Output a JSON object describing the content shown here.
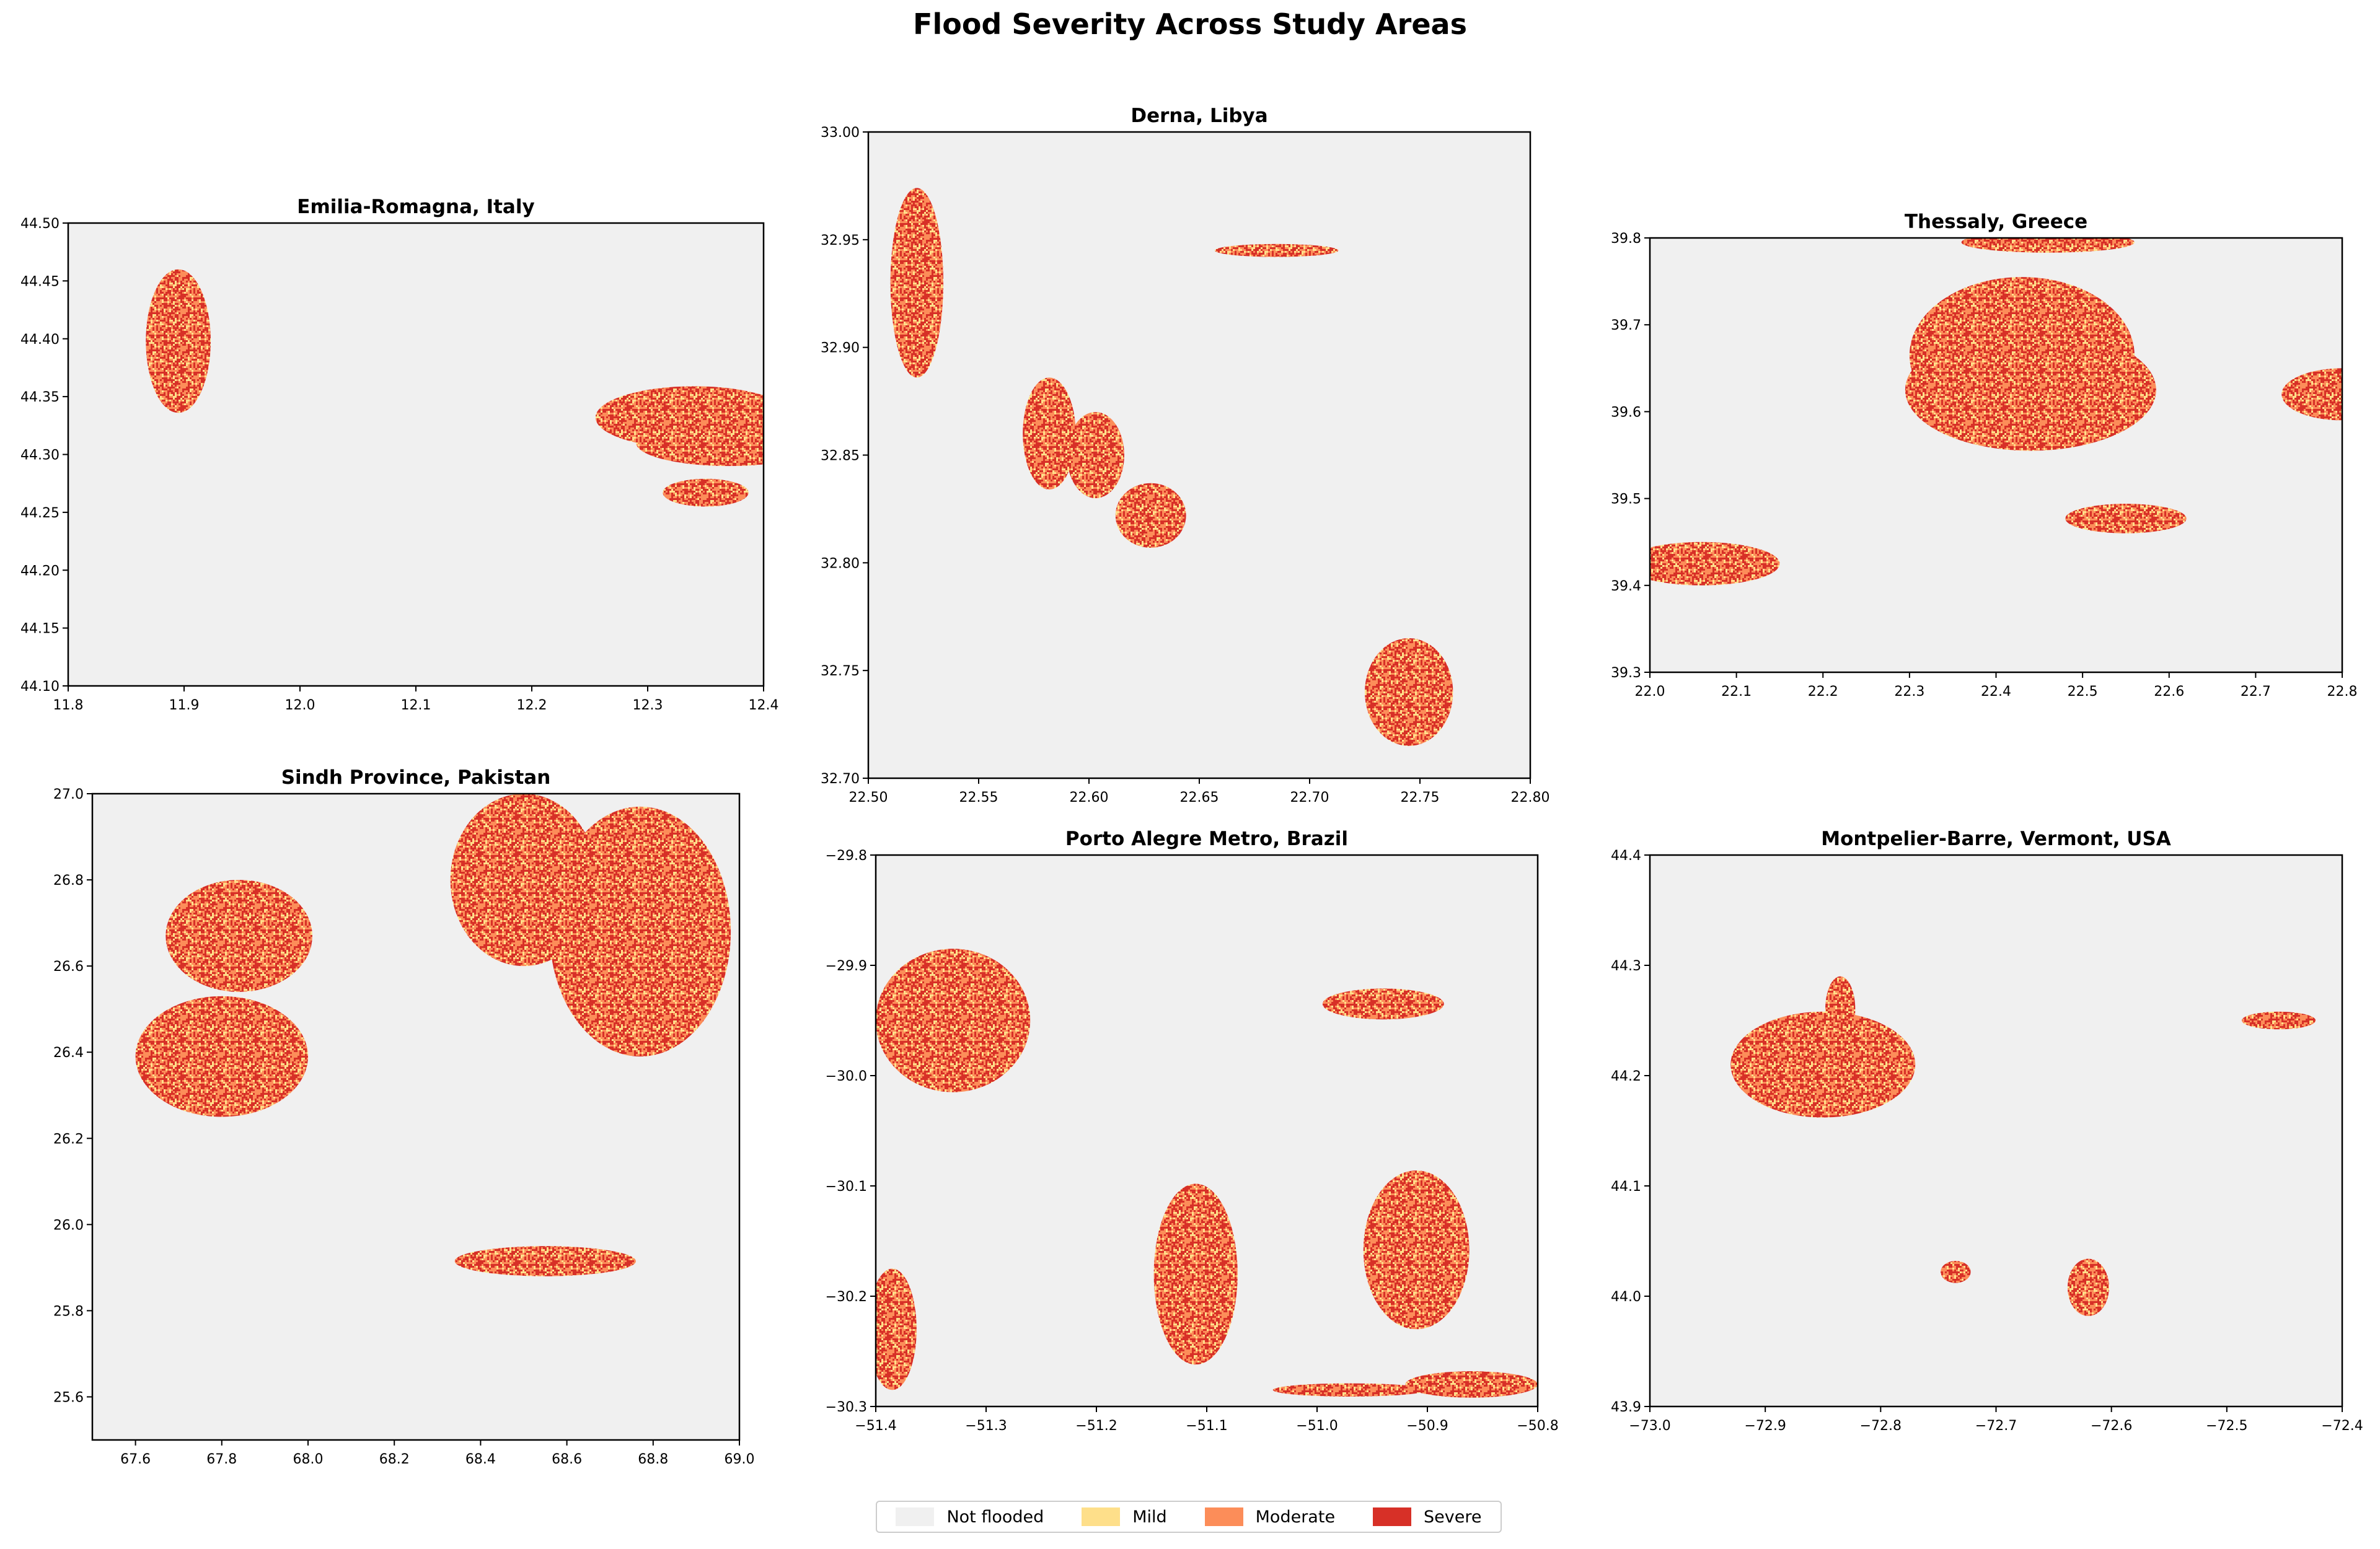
{
  "title": "Flood Severity Across Study Areas",
  "colors": {
    "not_flooded": "#f0f0f0",
    "mild": "#fedf8a",
    "moderate": "#fc8d59",
    "severe": "#d73027"
  },
  "legend": [
    {
      "label": "Not flooded",
      "color": "#f0f0f0"
    },
    {
      "label": "Mild",
      "color": "#fedf8a"
    },
    {
      "label": "Moderate",
      "color": "#fc8d59"
    },
    {
      "label": "Severe",
      "color": "#d73027"
    }
  ],
  "chart_data": [
    {
      "type": "heatmap",
      "title": "Emilia-Romagna, Italy",
      "xlim": [
        11.8,
        12.4
      ],
      "ylim": [
        44.1,
        44.5
      ],
      "xticks": [
        "11.8",
        "11.9",
        "12.0",
        "12.1",
        "12.2",
        "12.3",
        "12.4"
      ],
      "yticks": [
        "44.10",
        "44.15",
        "44.20",
        "44.25",
        "44.30",
        "44.35",
        "44.40",
        "44.45",
        "44.50"
      ],
      "flooded_regions": [
        [
          11.895,
          44.398,
          0.028,
          0.062
        ],
        [
          12.34,
          44.332,
          0.085,
          0.027
        ],
        [
          12.37,
          44.31,
          0.08,
          0.02
        ],
        [
          12.35,
          44.267,
          0.037,
          0.012
        ]
      ]
    },
    {
      "type": "heatmap",
      "title": "Derna, Libya",
      "xlim": [
        22.5,
        22.8
      ],
      "ylim": [
        32.7,
        33.0
      ],
      "xticks": [
        "22.50",
        "22.55",
        "22.60",
        "22.65",
        "22.70",
        "22.75",
        "22.80"
      ],
      "yticks": [
        "32.70",
        "32.75",
        "32.80",
        "32.85",
        "32.90",
        "32.95",
        "33.00"
      ],
      "flooded_regions": [
        [
          22.522,
          32.93,
          0.012,
          0.044
        ],
        [
          22.685,
          32.945,
          0.028,
          0.003
        ],
        [
          22.745,
          32.74,
          0.02,
          0.025
        ],
        [
          22.582,
          32.86,
          0.012,
          0.026
        ],
        [
          22.603,
          32.85,
          0.013,
          0.02
        ],
        [
          22.628,
          32.822,
          0.016,
          0.015
        ]
      ]
    },
    {
      "type": "heatmap",
      "title": "Thessaly, Greece",
      "xlim": [
        22.0,
        22.8
      ],
      "ylim": [
        39.3,
        39.8
      ],
      "xticks": [
        "22.0",
        "22.1",
        "22.2",
        "22.3",
        "22.4",
        "22.5",
        "22.6",
        "22.7",
        "22.8"
      ],
      "yticks": [
        "39.3",
        "39.4",
        "39.5",
        "39.6",
        "39.7",
        "39.8"
      ],
      "flooded_regions": [
        [
          22.43,
          39.665,
          0.13,
          0.09
        ],
        [
          22.44,
          39.625,
          0.145,
          0.07
        ],
        [
          22.46,
          39.795,
          0.1,
          0.012
        ],
        [
          22.8,
          39.62,
          0.07,
          0.03
        ],
        [
          22.55,
          39.477,
          0.07,
          0.017
        ],
        [
          22.06,
          39.425,
          0.09,
          0.025
        ]
      ]
    },
    {
      "type": "heatmap",
      "title": "Sindh Province, Pakistan",
      "xlim": [
        67.5,
        69.0
      ],
      "ylim": [
        25.5,
        27.0
      ],
      "xticks": [
        "67.6",
        "67.8",
        "68.0",
        "68.2",
        "68.4",
        "68.6",
        "68.8",
        "69.0"
      ],
      "yticks": [
        "25.6",
        "25.8",
        "26.0",
        "26.2",
        "26.4",
        "26.6",
        "26.8",
        "27.0"
      ],
      "flooded_regions": [
        [
          67.84,
          26.67,
          0.17,
          0.13
        ],
        [
          67.8,
          26.39,
          0.2,
          0.14
        ],
        [
          68.5,
          26.8,
          0.17,
          0.2
        ],
        [
          68.77,
          26.68,
          0.21,
          0.29
        ],
        [
          68.55,
          25.915,
          0.21,
          0.035
        ]
      ]
    },
    {
      "type": "heatmap",
      "title": "Porto Alegre Metro, Brazil",
      "xlim": [
        -51.4,
        -50.8
      ],
      "ylim": [
        -30.3,
        -29.8
      ],
      "xticks": [
        "−51.4",
        "−51.3",
        "−51.2",
        "−51.1",
        "−51.0",
        "−50.9",
        "−50.8"
      ],
      "yticks": [
        "−30.3",
        "−30.2",
        "−30.1",
        "−30.0",
        "−29.9",
        "−29.8"
      ],
      "flooded_regions": [
        [
          -51.33,
          -29.95,
          0.07,
          0.065
        ],
        [
          -51.11,
          -30.18,
          0.038,
          0.082
        ],
        [
          -50.94,
          -29.935,
          0.055,
          0.014
        ],
        [
          -50.91,
          -30.158,
          0.048,
          0.072
        ],
        [
          -51.385,
          -30.23,
          0.022,
          0.055
        ],
        [
          -50.86,
          -30.28,
          0.06,
          0.012
        ],
        [
          -50.97,
          -30.285,
          0.07,
          0.006
        ]
      ]
    },
    {
      "type": "heatmap",
      "title": "Montpelier-Barre, Vermont, USA",
      "xlim": [
        -73.0,
        -72.4
      ],
      "ylim": [
        43.9,
        44.4
      ],
      "xticks": [
        "−73.0",
        "−72.9",
        "−72.8",
        "−72.7",
        "−72.6",
        "−72.5",
        "−72.4"
      ],
      "yticks": [
        "43.9",
        "44.0",
        "44.1",
        "44.2",
        "44.3",
        "44.4"
      ],
      "flooded_regions": [
        [
          -72.85,
          44.21,
          0.08,
          0.048
        ],
        [
          -72.835,
          44.26,
          0.013,
          0.03
        ],
        [
          -72.735,
          44.022,
          0.013,
          0.01
        ],
        [
          -72.62,
          44.008,
          0.018,
          0.026
        ],
        [
          -72.455,
          44.25,
          0.032,
          0.008
        ]
      ]
    }
  ]
}
